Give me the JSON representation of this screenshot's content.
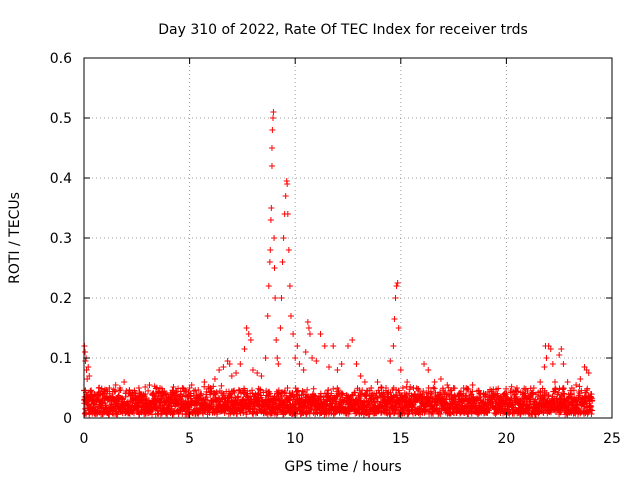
{
  "chart_data": {
    "type": "scatter",
    "title": "Day 310 of 2022, Rate Of TEC Index for receiver trds",
    "xlabel": "GPS time / hours",
    "ylabel": "ROTI / TECUs",
    "xlim": [
      0,
      25
    ],
    "ylim": [
      0,
      0.6
    ],
    "x_ticks": [
      "0",
      "5",
      "10",
      "15",
      "20",
      "25"
    ],
    "y_ticks": [
      "0",
      "0.1",
      "0.2",
      "0.3",
      "0.4",
      "0.5",
      "0.6"
    ],
    "grid": true,
    "legend": "none",
    "marker": "plus",
    "color": "#ff0000",
    "series": [
      {
        "points": [
          [
            0.0,
            0.03
          ],
          [
            0.02,
            0.12
          ],
          [
            0.05,
            0.11
          ],
          [
            0.07,
            0.095
          ],
          [
            0.1,
            0.1
          ],
          [
            0.12,
            0.08
          ],
          [
            0.15,
            0.065
          ],
          [
            0.2,
            0.085
          ],
          [
            0.25,
            0.07
          ],
          [
            0.3,
            0.045
          ],
          [
            0.4,
            0.03
          ],
          [
            0.5,
            0.04
          ],
          [
            0.7,
            0.05
          ],
          [
            0.8,
            0.045
          ],
          [
            1.0,
            0.035
          ],
          [
            1.2,
            0.05
          ],
          [
            1.5,
            0.055
          ],
          [
            1.7,
            0.05
          ],
          [
            1.9,
            0.06
          ],
          [
            2.0,
            0.045
          ],
          [
            2.3,
            0.04
          ],
          [
            2.6,
            0.05
          ],
          [
            2.9,
            0.04
          ],
          [
            3.1,
            0.055
          ],
          [
            3.3,
            0.04
          ],
          [
            3.6,
            0.05
          ],
          [
            3.8,
            0.045
          ],
          [
            4.0,
            0.035
          ],
          [
            4.3,
            0.03
          ],
          [
            4.6,
            0.04
          ],
          [
            4.9,
            0.035
          ],
          [
            5.0,
            0.05
          ],
          [
            5.1,
            0.055
          ],
          [
            5.2,
            0.045
          ],
          [
            5.5,
            0.04
          ],
          [
            5.7,
            0.06
          ],
          [
            6.0,
            0.05
          ],
          [
            6.2,
            0.065
          ],
          [
            6.4,
            0.08
          ],
          [
            6.6,
            0.085
          ],
          [
            6.8,
            0.095
          ],
          [
            6.9,
            0.09
          ],
          [
            7.0,
            0.07
          ],
          [
            7.2,
            0.075
          ],
          [
            7.4,
            0.09
          ],
          [
            7.6,
            0.115
          ],
          [
            7.7,
            0.15
          ],
          [
            7.8,
            0.14
          ],
          [
            7.9,
            0.13
          ],
          [
            8.0,
            0.08
          ],
          [
            8.2,
            0.075
          ],
          [
            8.4,
            0.07
          ],
          [
            8.6,
            0.1
          ],
          [
            8.7,
            0.17
          ],
          [
            8.75,
            0.22
          ],
          [
            8.8,
            0.26
          ],
          [
            8.82,
            0.28
          ],
          [
            8.85,
            0.33
          ],
          [
            8.87,
            0.35
          ],
          [
            8.9,
            0.42
          ],
          [
            8.9,
            0.45
          ],
          [
            8.92,
            0.48
          ],
          [
            8.95,
            0.5
          ],
          [
            8.97,
            0.51
          ],
          [
            9.0,
            0.3
          ],
          [
            9.02,
            0.25
          ],
          [
            9.05,
            0.2
          ],
          [
            9.1,
            0.13
          ],
          [
            9.15,
            0.1
          ],
          [
            9.2,
            0.09
          ],
          [
            9.3,
            0.15
          ],
          [
            9.35,
            0.2
          ],
          [
            9.4,
            0.26
          ],
          [
            9.45,
            0.3
          ],
          [
            9.5,
            0.34
          ],
          [
            9.55,
            0.37
          ],
          [
            9.6,
            0.395
          ],
          [
            9.62,
            0.39
          ],
          [
            9.65,
            0.34
          ],
          [
            9.7,
            0.28
          ],
          [
            9.75,
            0.22
          ],
          [
            9.8,
            0.17
          ],
          [
            9.9,
            0.14
          ],
          [
            10.0,
            0.1
          ],
          [
            10.1,
            0.12
          ],
          [
            10.2,
            0.09
          ],
          [
            10.4,
            0.08
          ],
          [
            10.5,
            0.11
          ],
          [
            10.6,
            0.16
          ],
          [
            10.65,
            0.15
          ],
          [
            10.7,
            0.14
          ],
          [
            10.8,
            0.1
          ],
          [
            11.0,
            0.095
          ],
          [
            11.2,
            0.14
          ],
          [
            11.4,
            0.12
          ],
          [
            11.6,
            0.085
          ],
          [
            11.8,
            0.12
          ],
          [
            12.0,
            0.08
          ],
          [
            12.2,
            0.09
          ],
          [
            12.5,
            0.12
          ],
          [
            12.7,
            0.13
          ],
          [
            12.9,
            0.09
          ],
          [
            13.1,
            0.07
          ],
          [
            13.3,
            0.06
          ],
          [
            13.6,
            0.05
          ],
          [
            13.9,
            0.06
          ],
          [
            14.1,
            0.05
          ],
          [
            14.3,
            0.05
          ],
          [
            14.5,
            0.095
          ],
          [
            14.65,
            0.12
          ],
          [
            14.7,
            0.165
          ],
          [
            14.75,
            0.2
          ],
          [
            14.8,
            0.22
          ],
          [
            14.85,
            0.225
          ],
          [
            14.9,
            0.15
          ],
          [
            15.0,
            0.08
          ],
          [
            15.1,
            0.05
          ],
          [
            15.3,
            0.06
          ],
          [
            15.6,
            0.05
          ],
          [
            15.9,
            0.045
          ],
          [
            16.1,
            0.09
          ],
          [
            16.3,
            0.08
          ],
          [
            16.6,
            0.06
          ],
          [
            16.9,
            0.065
          ],
          [
            17.2,
            0.055
          ],
          [
            17.5,
            0.05
          ],
          [
            17.8,
            0.04
          ],
          [
            18.1,
            0.05
          ],
          [
            18.4,
            0.055
          ],
          [
            18.7,
            0.045
          ],
          [
            19.0,
            0.04
          ],
          [
            19.3,
            0.045
          ],
          [
            19.6,
            0.035
          ],
          [
            19.9,
            0.04
          ],
          [
            20.2,
            0.045
          ],
          [
            20.5,
            0.05
          ],
          [
            20.8,
            0.04
          ],
          [
            21.0,
            0.045
          ],
          [
            21.3,
            0.05
          ],
          [
            21.6,
            0.06
          ],
          [
            21.8,
            0.085
          ],
          [
            21.85,
            0.12
          ],
          [
            21.9,
            0.1
          ],
          [
            22.0,
            0.12
          ],
          [
            22.1,
            0.115
          ],
          [
            22.2,
            0.09
          ],
          [
            22.3,
            0.06
          ],
          [
            22.5,
            0.105
          ],
          [
            22.6,
            0.115
          ],
          [
            22.7,
            0.09
          ],
          [
            22.9,
            0.06
          ],
          [
            23.1,
            0.05
          ],
          [
            23.3,
            0.055
          ],
          [
            23.5,
            0.065
          ],
          [
            23.7,
            0.085
          ],
          [
            23.8,
            0.08
          ],
          [
            23.9,
            0.075
          ],
          [
            24.0,
            0.04
          ]
        ]
      }
    ],
    "band": {
      "x_start": 0,
      "x_end": 24.05,
      "low_y": 0.0,
      "high_y": 0.04
    }
  }
}
